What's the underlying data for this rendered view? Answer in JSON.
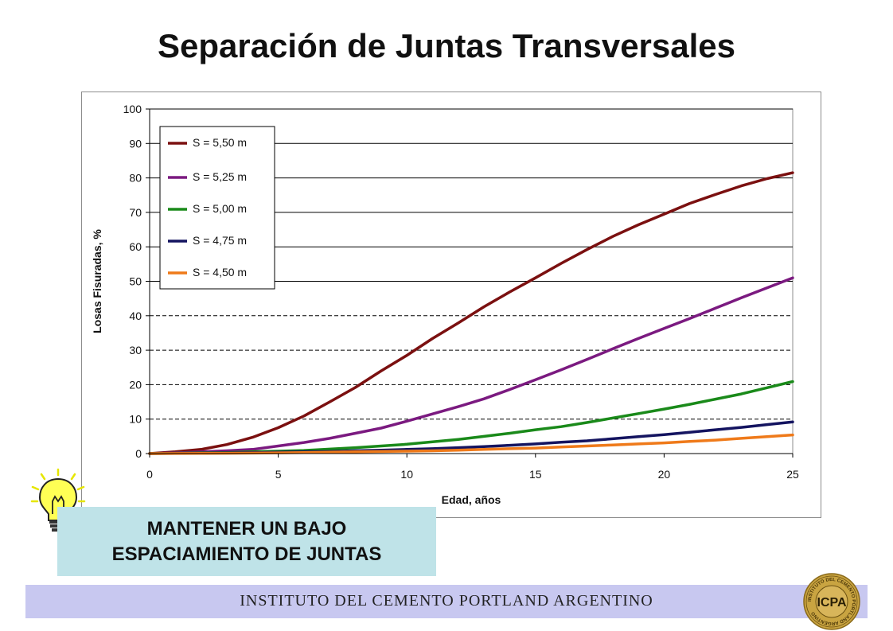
{
  "page": {
    "title": "Separación de Juntas Transversales",
    "callout_line1": "MANTENER UN BAJO",
    "callout_line2": "ESPACIAMIENTO DE JUNTAS",
    "footer": "INSTITUTO DEL CEMENTO PORTLAND ARGENTINO",
    "logo_text": "ICPA",
    "logo_ring_text": "INSTITUTO DEL CEMENTO PORTLAND ARGENTINO"
  },
  "chart_data": {
    "type": "line",
    "title": "",
    "xlabel": "Edad, años",
    "ylabel": "Losas Fisuradas, %",
    "xlim": [
      0,
      25
    ],
    "ylim": [
      0,
      100
    ],
    "xticks": [
      0,
      5,
      10,
      15,
      20,
      25
    ],
    "yticks": [
      0,
      10,
      20,
      30,
      40,
      50,
      60,
      70,
      80,
      90,
      100
    ],
    "grid": "horizontal; solid 50–100, dashed 10–40",
    "legend_position": "top-left",
    "x": [
      0,
      1,
      2,
      3,
      4,
      5,
      6,
      7,
      8,
      9,
      10,
      11,
      12,
      13,
      14,
      15,
      16,
      17,
      18,
      19,
      20,
      21,
      22,
      23,
      24,
      25
    ],
    "series": [
      {
        "name": "S = 5,50 m",
        "color": "#7b1010",
        "values": [
          0,
          0.5,
          1.2,
          2.6,
          4.7,
          7.5,
          10.9,
          15.0,
          19.2,
          24.0,
          28.5,
          33.4,
          37.9,
          42.6,
          46.9,
          51.0,
          55.2,
          59.2,
          63.0,
          66.4,
          69.5,
          72.6,
          75.2,
          77.7,
          79.8,
          81.5
        ]
      },
      {
        "name": "S = 5,25 m",
        "color": "#7b1a80",
        "values": [
          0,
          0.2,
          0.5,
          0.8,
          1.2,
          2.2,
          3.2,
          4.4,
          5.9,
          7.4,
          9.4,
          11.5,
          13.6,
          15.9,
          18.6,
          21.4,
          24.3,
          27.3,
          30.4,
          33.4,
          36.3,
          39.2,
          42.2,
          45.2,
          48.1,
          51.0
        ]
      },
      {
        "name": "S = 5,00 m",
        "color": "#1a8a1a",
        "values": [
          0,
          0.1,
          0.2,
          0.3,
          0.5,
          0.7,
          0.9,
          1.3,
          1.7,
          2.2,
          2.7,
          3.4,
          4.1,
          5.0,
          5.9,
          6.9,
          7.8,
          9.0,
          10.3,
          11.6,
          12.9,
          14.3,
          15.8,
          17.3,
          19.1,
          20.9
        ]
      },
      {
        "name": "S = 4,75 m",
        "color": "#141460",
        "values": [
          0,
          0.05,
          0.1,
          0.2,
          0.3,
          0.4,
          0.5,
          0.6,
          0.8,
          1.0,
          1.2,
          1.4,
          1.7,
          2.0,
          2.4,
          2.8,
          3.3,
          3.7,
          4.3,
          4.9,
          5.5,
          6.2,
          6.9,
          7.6,
          8.4,
          9.2
        ]
      },
      {
        "name": "S = 4,50 m",
        "color": "#ef7a1a",
        "values": [
          0,
          0.03,
          0.06,
          0.1,
          0.15,
          0.2,
          0.3,
          0.4,
          0.5,
          0.6,
          0.7,
          0.8,
          1.0,
          1.2,
          1.4,
          1.6,
          1.9,
          2.2,
          2.5,
          2.8,
          3.1,
          3.5,
          3.9,
          4.4,
          4.9,
          5.4
        ]
      }
    ]
  }
}
